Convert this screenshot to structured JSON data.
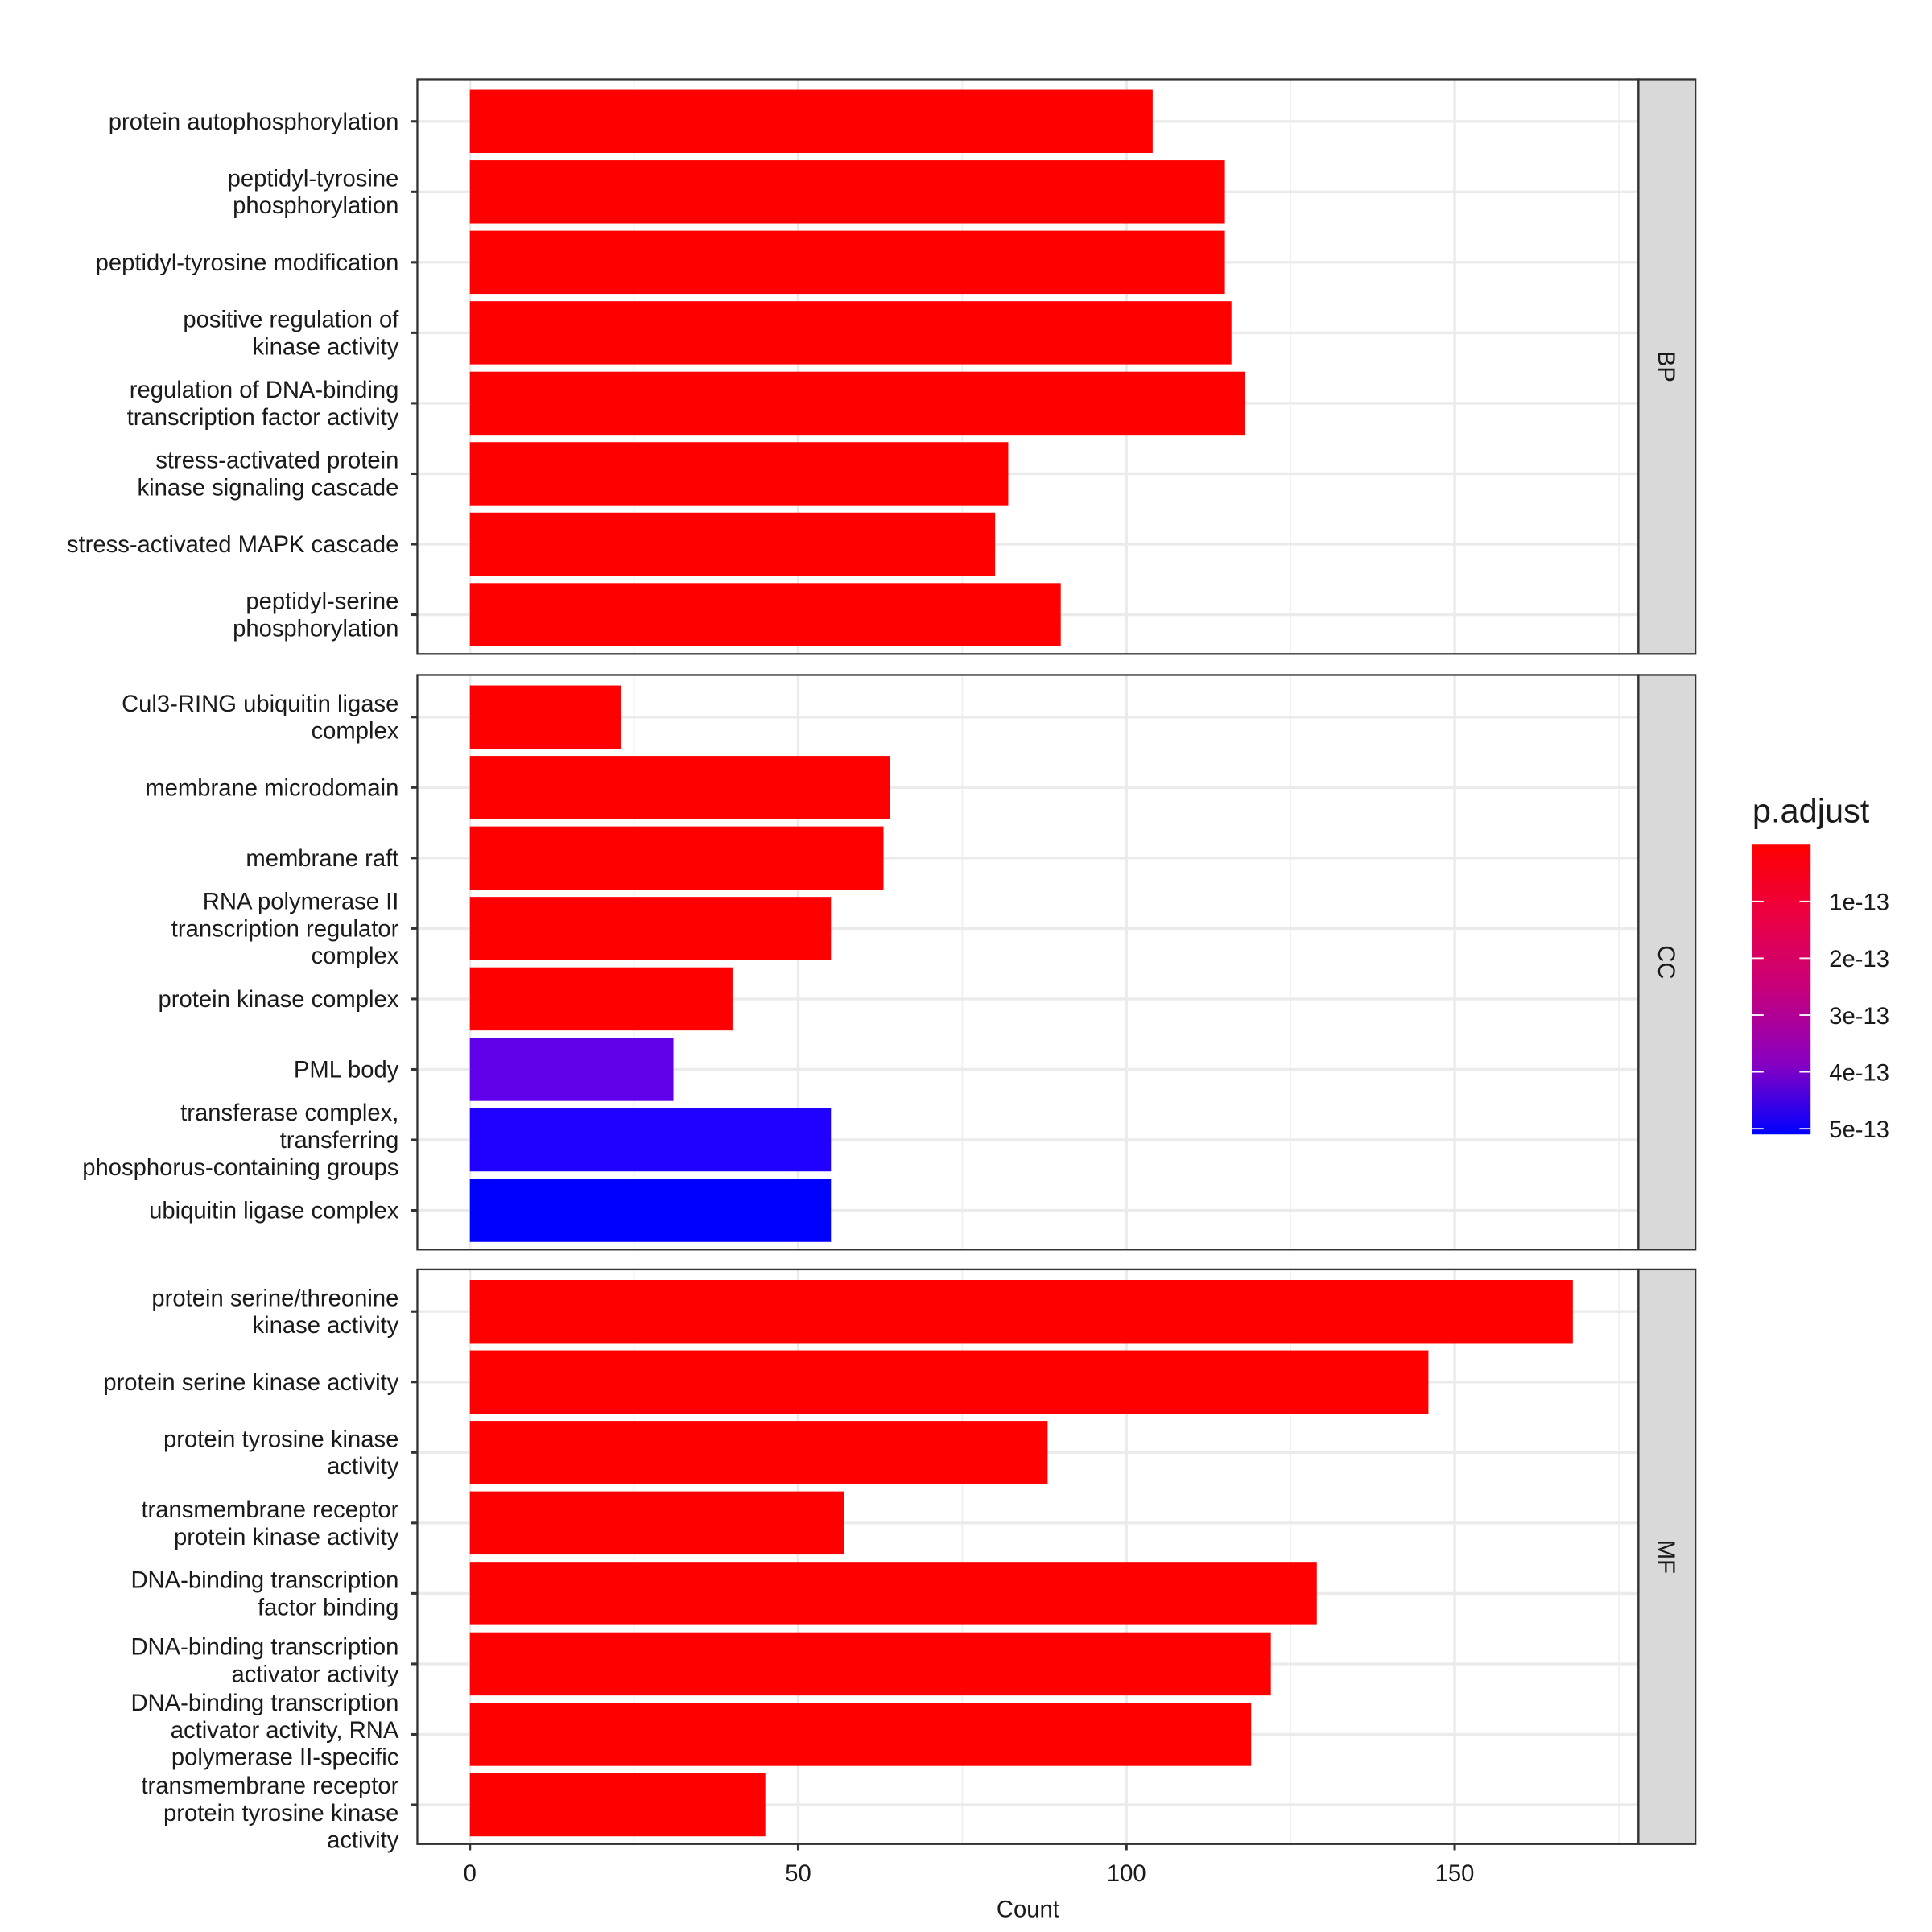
{
  "chart_data": {
    "type": "bar",
    "orientation": "horizontal",
    "xlabel": "Count",
    "ylabel": "",
    "xlim": [
      -8,
      178
    ],
    "x_ticks": [
      0,
      50,
      100,
      150
    ],
    "grid": true,
    "facets": [
      {
        "strip": "BP",
        "categories": [
          "protein autophosphorylation",
          "peptidyl-tyrosine\nphosphorylation",
          "peptidyl-tyrosine modification",
          "positive regulation of\nkinase activity",
          "regulation of DNA-binding\ntranscription factor activity",
          "stress-activated protein\nkinase signaling cascade",
          "stress-activated MAPK cascade",
          "peptidyl-serine\nphosphorylation"
        ],
        "values": [
          104,
          115,
          115,
          116,
          118,
          82,
          80,
          90
        ],
        "fill": [
          "#FF0000",
          "#FF0000",
          "#FF0000",
          "#FF0000",
          "#FF0000",
          "#FF0000",
          "#FF0000",
          "#FF0000"
        ]
      },
      {
        "strip": "CC",
        "categories": [
          "Cul3-RING ubiquitin ligase\ncomplex",
          "membrane microdomain",
          "membrane raft",
          "RNA polymerase II\ntranscription regulator\ncomplex",
          "protein kinase complex",
          "PML body",
          "transferase complex,\ntransferring\nphosphorus-containing groups",
          "ubiquitin ligase complex"
        ],
        "values": [
          23,
          64,
          63,
          55,
          40,
          31,
          55,
          55
        ],
        "fill": [
          "#FF0000",
          "#FF0000",
          "#FF0000",
          "#FF0000",
          "#FF0000",
          "#6000EA",
          "#2000FF",
          "#0000FF"
        ]
      },
      {
        "strip": "MF",
        "categories": [
          "protein serine/threonine\nkinase activity",
          "protein serine kinase activity",
          "protein tyrosine kinase\nactivity",
          "transmembrane receptor\nprotein kinase activity",
          "DNA-binding transcription\nfactor binding",
          "DNA-binding transcription\nactivator activity",
          "DNA-binding transcription\nactivator activity, RNA\npolymerase II-specific",
          "transmembrane receptor\nprotein tyrosine kinase\nactivity"
        ],
        "values": [
          168,
          146,
          88,
          57,
          129,
          122,
          119,
          45
        ],
        "fill": [
          "#FF0000",
          "#FF0000",
          "#FF0000",
          "#FF0000",
          "#FF0000",
          "#FF0000",
          "#FF0000",
          "#FF0000"
        ]
      }
    ],
    "legend": {
      "title": "p.adjust",
      "position": "right",
      "low_color": "#FF0000",
      "high_color": "#0000FF",
      "range": [
        0,
        5.1e-13
      ],
      "ticks": [
        1e-13,
        2e-13,
        3e-13,
        4e-13,
        5e-13
      ],
      "tick_labels": [
        "1e-13",
        "2e-13",
        "3e-13",
        "4e-13",
        "5e-13"
      ]
    }
  }
}
